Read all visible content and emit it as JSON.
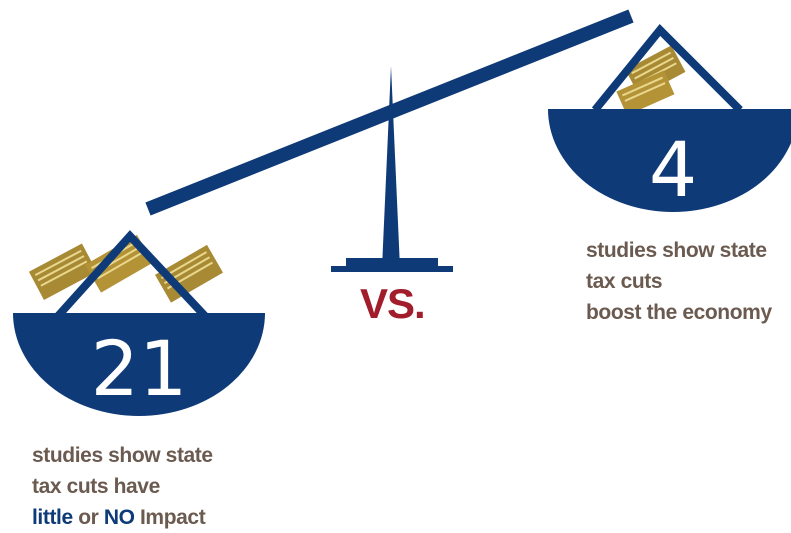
{
  "left_pan": {
    "count": "21",
    "caption_line1": "studies show state",
    "caption_line2": "tax cuts have",
    "caption_word_little": "little",
    "caption_word_or": "or",
    "caption_word_no": "NO",
    "caption_word_impact": "Impact"
  },
  "right_pan": {
    "count": "4",
    "caption_line1": "studies show state",
    "caption_line2": "tax cuts",
    "caption_line3": "boost the economy"
  },
  "center_label": "VS.",
  "colors": {
    "navy": "#0e3a78",
    "gold": "#a88a34",
    "caption": "#6b5a4f",
    "vs": "#a21d2b"
  }
}
